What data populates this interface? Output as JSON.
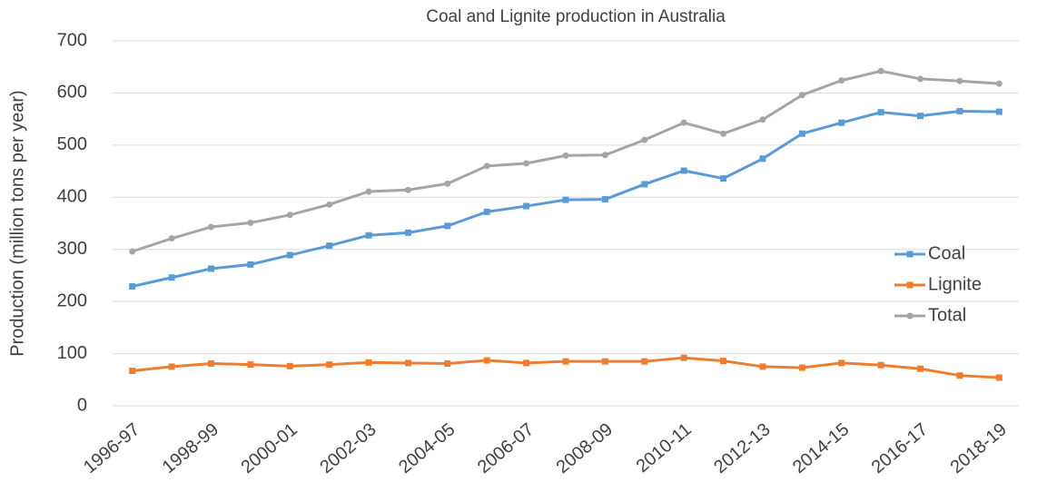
{
  "chart_data": {
    "type": "line",
    "title": "Coal and Lignite production in Australia",
    "y_label": "Production (million tons per year)",
    "categories": [
      "1996-97",
      null,
      "1998-99",
      null,
      "2000-01",
      null,
      "2002-03",
      null,
      "2004-05",
      null,
      "2006-07",
      null,
      "2008-09",
      null,
      "2010-11",
      null,
      "2012-13",
      null,
      "2014-15",
      null,
      "2016-17",
      null,
      "2018-19"
    ],
    "series": [
      {
        "name": "Coal",
        "color": "#5b9bd5",
        "marker": "square",
        "values": [
          229,
          246,
          263,
          271,
          289,
          307,
          327,
          332,
          345,
          372,
          383,
          395,
          396,
          425,
          451,
          436,
          474,
          522,
          543,
          563,
          556,
          565,
          564
        ]
      },
      {
        "name": "Lignite",
        "color": "#ed7d31",
        "marker": "square",
        "values": [
          67,
          75,
          81,
          79,
          76,
          79,
          83,
          82,
          81,
          87,
          82,
          85,
          85,
          85,
          92,
          86,
          75,
          73,
          82,
          78,
          71,
          58,
          54
        ]
      },
      {
        "name": "Total",
        "color": "#a5a5a5",
        "marker": "circle",
        "values": [
          296,
          321,
          343,
          351,
          366,
          386,
          411,
          414,
          426,
          460,
          465,
          480,
          481,
          510,
          543,
          522,
          549,
          596,
          624,
          642,
          627,
          623,
          618
        ]
      }
    ],
    "ylim": [
      0,
      700
    ],
    "yticks": [
      0,
      100,
      200,
      300,
      400,
      500,
      600,
      700
    ],
    "grid": true,
    "legend": "right"
  }
}
